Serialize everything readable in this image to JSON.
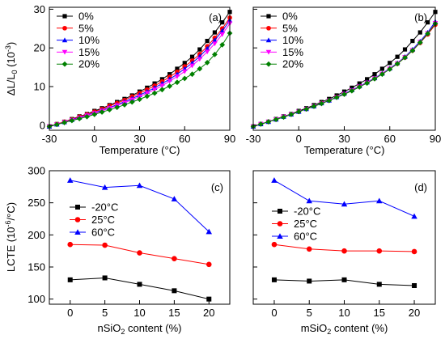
{
  "figure": {
    "panels": [
      {
        "key": "a",
        "label": "(a)",
        "type": "line",
        "xlabel": "Temperature (°C)",
        "ylabel": "ΔL/L₀ (10⁻³)",
        "ylabel_parts": {
          "main": "ΔL/L",
          "sub": "0",
          "unit": " (10",
          "sup": "-3",
          "close": ")"
        },
        "xlim": [
          -30,
          90
        ],
        "ylim": [
          -1.3,
          30.5
        ],
        "xticks": [
          -30,
          0,
          30,
          60,
          90
        ],
        "yticks": [
          0,
          10,
          20,
          30
        ],
        "legend_position": "top-left",
        "series": [
          {
            "name": "0%",
            "color": "#000000",
            "marker": "square",
            "x": [
              -30,
              -25,
              -20,
              -15,
              -10,
              -5,
              0,
              5,
              10,
              15,
              20,
              25,
              30,
              35,
              40,
              45,
              50,
              55,
              60,
              65,
              70,
              75,
              80,
              85,
              90
            ],
            "y": [
              -0.3,
              0.3,
              0.9,
              1.6,
              2.3,
              2.9,
              3.7,
              4.4,
              5.2,
              6.0,
              6.8,
              7.7,
              8.7,
              9.7,
              10.8,
              11.9,
              13.2,
              14.6,
              16.1,
              17.7,
              19.6,
              21.8,
              24.0,
              26.6,
              29.3
            ]
          },
          {
            "name": "5%",
            "color": "#ff0000",
            "marker": "circle",
            "x": [
              -30,
              -25,
              -20,
              -15,
              -10,
              -5,
              0,
              5,
              10,
              15,
              20,
              25,
              30,
              35,
              40,
              45,
              50,
              55,
              60,
              65,
              70,
              75,
              80,
              85,
              90
            ],
            "y": [
              -0.3,
              0.3,
              0.9,
              1.5,
              2.2,
              2.8,
              3.5,
              4.2,
              5.0,
              5.7,
              6.5,
              7.4,
              8.3,
              9.2,
              10.2,
              11.3,
              12.5,
              13.8,
              15.2,
              16.7,
              18.4,
              20.4,
              22.6,
              25.0,
              27.8
            ]
          },
          {
            "name": "10%",
            "color": "#0000ff",
            "marker": "triangle-up",
            "x": [
              -30,
              -25,
              -20,
              -15,
              -10,
              -5,
              0,
              5,
              10,
              15,
              20,
              25,
              30,
              35,
              40,
              45,
              50,
              55,
              60,
              65,
              70,
              75,
              80,
              85,
              90
            ],
            "y": [
              -0.3,
              0.2,
              0.8,
              1.4,
              2.0,
              2.6,
              3.2,
              3.9,
              4.6,
              5.3,
              6.1,
              6.9,
              7.8,
              8.7,
              9.7,
              10.8,
              11.9,
              13.2,
              14.6,
              16.1,
              17.8,
              19.8,
              22.0,
              24.4,
              27.1
            ]
          },
          {
            "name": "15%",
            "color": "#ff00ff",
            "marker": "triangle-down",
            "x": [
              -30,
              -25,
              -20,
              -15,
              -10,
              -5,
              0,
              5,
              10,
              15,
              20,
              25,
              30,
              35,
              40,
              45,
              50,
              55,
              60,
              65,
              70,
              75,
              80,
              85,
              90
            ],
            "y": [
              -0.3,
              0.2,
              0.8,
              1.3,
              1.9,
              2.5,
              3.1,
              3.7,
              4.4,
              5.1,
              5.8,
              6.6,
              7.4,
              8.3,
              9.2,
              10.2,
              11.4,
              12.6,
              13.9,
              15.4,
              17.1,
              19.0,
              21.1,
              23.5,
              26.3
            ]
          },
          {
            "name": "20%",
            "color": "#008000",
            "marker": "diamond",
            "x": [
              -30,
              -25,
              -20,
              -15,
              -10,
              -5,
              0,
              5,
              10,
              15,
              20,
              25,
              30,
              35,
              40,
              45,
              50,
              55,
              60,
              65,
              70,
              75,
              80,
              85,
              90
            ],
            "y": [
              -0.3,
              0.2,
              0.7,
              1.2,
              1.7,
              2.2,
              2.8,
              3.4,
              4.0,
              4.6,
              5.3,
              6.0,
              6.7,
              7.5,
              8.3,
              9.2,
              10.1,
              11.1,
              12.1,
              13.2,
              14.6,
              16.2,
              18.3,
              20.8,
              23.8
            ]
          }
        ]
      },
      {
        "key": "b",
        "label": "(b)",
        "type": "line",
        "xlabel": "Temperature (°C)",
        "ylabel": "",
        "xlim": [
          -30,
          90
        ],
        "ylim": [
          -1.3,
          30.5
        ],
        "xticks": [
          -30,
          0,
          30,
          60,
          90
        ],
        "yticks": [
          0,
          10,
          20,
          30
        ],
        "legend_position": "top-left",
        "series": [
          {
            "name": "0%",
            "color": "#000000",
            "marker": "square",
            "x": [
              -30,
              -25,
              -20,
              -15,
              -10,
              -5,
              0,
              5,
              10,
              15,
              20,
              25,
              30,
              35,
              40,
              45,
              50,
              55,
              60,
              65,
              70,
              75,
              80,
              85,
              90
            ],
            "y": [
              -0.3,
              0.3,
              0.9,
              1.6,
              2.3,
              2.9,
              3.7,
              4.4,
              5.2,
              6.0,
              6.8,
              7.7,
              8.7,
              9.7,
              10.8,
              11.9,
              13.2,
              14.6,
              16.1,
              17.7,
              19.6,
              21.8,
              24.0,
              26.6,
              29.3
            ]
          },
          {
            "name": "5%",
            "color": "#ff0000",
            "marker": "circle",
            "x": [
              -30,
              -25,
              -20,
              -15,
              -10,
              -5,
              0,
              5,
              10,
              15,
              20,
              25,
              30,
              35,
              40,
              45,
              50,
              55,
              60,
              65,
              70,
              75,
              80,
              85,
              90
            ],
            "y": [
              -0.3,
              0.3,
              0.9,
              1.5,
              2.2,
              2.8,
              3.5,
              4.2,
              4.9,
              5.7,
              6.4,
              7.3,
              8.1,
              9.0,
              10.0,
              11.0,
              12.1,
              13.3,
              14.6,
              15.9,
              17.5,
              19.3,
              21.3,
              23.5,
              26.0
            ]
          },
          {
            "name": "10%",
            "color": "#0000ff",
            "marker": "triangle-up",
            "x": [
              -30,
              -25,
              -20,
              -15,
              -10,
              -5,
              0,
              5,
              10,
              15,
              20,
              25,
              30,
              35,
              40,
              45,
              50,
              55,
              60,
              65,
              70,
              75,
              80,
              85,
              90
            ],
            "y": [
              -0.3,
              0.3,
              0.9,
              1.5,
              2.2,
              2.8,
              3.5,
              4.2,
              4.9,
              5.7,
              6.4,
              7.3,
              8.2,
              9.1,
              10.1,
              11.1,
              12.2,
              13.4,
              14.7,
              16.1,
              17.7,
              19.6,
              21.7,
              24.0,
              26.8
            ]
          },
          {
            "name": "15%",
            "color": "#ff00ff",
            "marker": "triangle-down",
            "x": [
              -30,
              -25,
              -20,
              -15,
              -10,
              -5,
              0,
              5,
              10,
              15,
              20,
              25,
              30,
              35,
              40,
              45,
              50,
              55,
              60,
              65,
              70,
              75,
              80,
              85,
              90
            ],
            "y": [
              -0.3,
              0.3,
              0.9,
              1.5,
              2.2,
              2.8,
              3.5,
              4.2,
              4.9,
              5.6,
              6.4,
              7.2,
              8.1,
              9.0,
              10.0,
              11.0,
              12.1,
              13.3,
              14.6,
              16.0,
              17.6,
              19.4,
              21.5,
              23.8,
              26.4
            ]
          },
          {
            "name": "20%",
            "color": "#008000",
            "marker": "diamond",
            "x": [
              -30,
              -25,
              -20,
              -15,
              -10,
              -5,
              0,
              5,
              10,
              15,
              20,
              25,
              30,
              35,
              40,
              45,
              50,
              55,
              60,
              65,
              70,
              75,
              80,
              85,
              90
            ],
            "y": [
              -0.3,
              0.3,
              0.9,
              1.5,
              2.1,
              2.8,
              3.5,
              4.2,
              4.9,
              5.6,
              6.4,
              7.2,
              8.0,
              8.9,
              9.9,
              10.9,
              12.0,
              13.2,
              14.5,
              15.9,
              17.5,
              19.3,
              21.4,
              23.7,
              26.3
            ]
          }
        ]
      },
      {
        "key": "c",
        "label": "(c)",
        "type": "line",
        "xlabel": "nSiO₂ content (%)",
        "xlabel_parts": {
          "a": "nSiO",
          "sub": "2",
          "b": " content (%)"
        },
        "ylabel": "LCTE (10⁻⁶/°C)",
        "ylabel_parts": {
          "main": "LCTE (10",
          "sup": "-6",
          "close": "/°C)"
        },
        "xlim": [
          -3,
          23
        ],
        "ylim": [
          92,
          300
        ],
        "xticks": [
          0,
          5,
          10,
          15,
          20
        ],
        "yticks": [
          100,
          150,
          200,
          250,
          300
        ],
        "legend_position": "center-left",
        "series": [
          {
            "name": "-20°C",
            "color": "#000000",
            "marker": "square",
            "x": [
              0,
              5,
              10,
              15,
              20
            ],
            "y": [
              130,
              133,
              123,
              113,
              100
            ]
          },
          {
            "name": "25°C",
            "color": "#ff0000",
            "marker": "circle",
            "x": [
              0,
              5,
              10,
              15,
              20
            ],
            "y": [
              185,
              184,
              172,
              163,
              154
            ]
          },
          {
            "name": "60°C",
            "color": "#0000ff",
            "marker": "triangle-up",
            "x": [
              0,
              5,
              10,
              15,
              20
            ],
            "y": [
              285,
              274,
              277,
              256,
              205
            ]
          }
        ]
      },
      {
        "key": "d",
        "label": "(d)",
        "type": "line",
        "xlabel": "mSiO₂ content (%)",
        "xlabel_parts": {
          "a": "mSiO",
          "sub": "2",
          "b": " content (%)"
        },
        "ylabel": "",
        "xlim": [
          -3,
          23
        ],
        "ylim": [
          92,
          300
        ],
        "xticks": [
          0,
          5,
          10,
          15,
          20
        ],
        "yticks": [
          100,
          150,
          200,
          250,
          300
        ],
        "legend_position": "center-left",
        "series": [
          {
            "name": "-20°C",
            "color": "#000000",
            "marker": "square",
            "x": [
              0,
              5,
              10,
              15,
              20
            ],
            "y": [
              130,
              128,
              130,
              123,
              121
            ]
          },
          {
            "name": "25°C",
            "color": "#ff0000",
            "marker": "circle",
            "x": [
              0,
              5,
              10,
              15,
              20
            ],
            "y": [
              185,
              178,
              175,
              175,
              174
            ]
          },
          {
            "name": "60°C",
            "color": "#0000ff",
            "marker": "triangle-up",
            "x": [
              0,
              5,
              10,
              15,
              20
            ],
            "y": [
              285,
              253,
              248,
              253,
              229
            ]
          }
        ]
      }
    ]
  },
  "chart_data": [
    {
      "type": "line",
      "label": "(a)",
      "xlabel": "Temperature (°C)",
      "ylabel": "ΔL/L0 (10-3)",
      "xlim": [
        -30,
        90
      ],
      "ylim": [
        -1.3,
        30.5
      ]
    },
    {
      "type": "line",
      "label": "(b)",
      "xlabel": "Temperature (°C)",
      "ylabel": "",
      "xlim": [
        -30,
        90
      ],
      "ylim": [
        -1.3,
        30.5
      ]
    },
    {
      "type": "line",
      "label": "(c)",
      "xlabel": "nSiO2 content (%)",
      "ylabel": "LCTE (10-6/°C)",
      "xlim": [
        -3,
        23
      ],
      "ylim": [
        92,
        300
      ]
    },
    {
      "type": "line",
      "label": "(d)",
      "xlabel": "mSiO2 content (%)",
      "ylabel": "",
      "xlim": [
        -3,
        23
      ],
      "ylim": [
        92,
        300
      ]
    }
  ]
}
